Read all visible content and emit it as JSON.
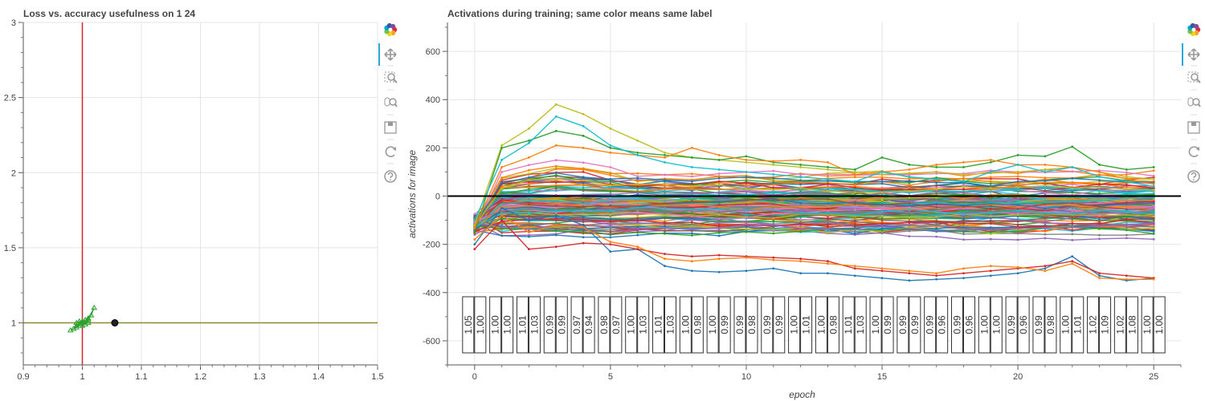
{
  "left_plot": {
    "title": "Loss vs. accuracy usefulness on 1 24",
    "toolbar_icons": [
      "bokeh-logo-icon",
      "pan-icon",
      "box-zoom-icon",
      "wheel-zoom-icon",
      "save-icon",
      "reset-icon",
      "help-icon"
    ]
  },
  "right_plot": {
    "title": "Activations during training; same color means same label",
    "toolbar_icons": [
      "bokeh-logo-icon",
      "pan-icon",
      "box-zoom-icon",
      "wheel-zoom-icon",
      "save-icon",
      "reset-icon",
      "help-icon"
    ]
  },
  "chart_data": [
    {
      "type": "scatter",
      "title": "Loss vs. accuracy usefulness on 1 24",
      "xlabel": "",
      "ylabel": "",
      "xlim": [
        0.9,
        1.5
      ],
      "ylim": [
        0.72,
        3.0
      ],
      "x_ticks": [
        0.9,
        1.0,
        1.1,
        1.2,
        1.3,
        1.4,
        1.5
      ],
      "y_ticks": [
        1.0,
        1.5,
        2.0,
        2.5,
        3.0
      ],
      "grid": true,
      "reference_lines": {
        "vertical_x": 1.0,
        "vertical_color": "#d62728",
        "horizontal_y": 1.0,
        "horizontal_color": "#8c8c2a"
      },
      "current_point": {
        "x": 1.055,
        "y": 1.0
      },
      "trajectory_color": "#2ca02c",
      "trajectory": [
        [
          0.98,
          0.95
        ],
        [
          0.99,
          0.97
        ],
        [
          1.0,
          1.0
        ],
        [
          1.01,
          1.02
        ],
        [
          1.005,
          0.99
        ],
        [
          0.995,
          1.01
        ],
        [
          1.0,
          0.98
        ],
        [
          1.015,
          1.05
        ],
        [
          1.02,
          1.1
        ],
        [
          1.01,
          1.03
        ],
        [
          0.99,
          0.98
        ],
        [
          0.985,
          0.96
        ],
        [
          1.0,
          1.0
        ],
        [
          1.005,
          1.02
        ],
        [
          0.995,
          0.99
        ],
        [
          1.01,
          1.0
        ],
        [
          1.0,
          1.01
        ],
        [
          0.99,
          1.0
        ]
      ]
    },
    {
      "type": "line",
      "title": "Activations during training; same color means same label",
      "xlabel": "epoch",
      "ylabel": "activations for image",
      "xlim": [
        -1,
        26
      ],
      "ylim": [
        -700,
        720
      ],
      "x_ticks": [
        0,
        5,
        10,
        15,
        20,
        25
      ],
      "y_ticks": [
        -600,
        -400,
        -200,
        0,
        200,
        400,
        600
      ],
      "grid": true,
      "zero_line": true,
      "x": [
        0,
        1,
        2,
        3,
        4,
        5,
        6,
        7,
        8,
        9,
        10,
        11,
        12,
        13,
        14,
        15,
        16,
        17,
        18,
        19,
        20,
        21,
        22,
        23,
        24,
        25
      ],
      "n_series_approx": 130,
      "series_colors": [
        "#1f77b4",
        "#ff7f0e",
        "#2ca02c",
        "#d62728",
        "#9467bd",
        "#8c564b",
        "#e377c2",
        "#7f7f7f",
        "#bcbd22",
        "#17becf"
      ],
      "highlighted_series": [
        {
          "color": "#bcbd22",
          "values": [
            -120,
            210,
            280,
            380,
            340,
            280,
            230,
            180,
            160,
            150,
            140,
            130,
            120,
            110,
            100,
            90,
            95,
            100,
            90,
            95,
            100,
            110,
            120,
            100,
            80,
            70
          ]
        },
        {
          "color": "#2ca02c",
          "values": [
            -150,
            200,
            230,
            270,
            250,
            200,
            180,
            170,
            160,
            150,
            165,
            140,
            130,
            120,
            110,
            160,
            130,
            120,
            120,
            140,
            170,
            165,
            205,
            130,
            110,
            120
          ]
        },
        {
          "color": "#ff7f0e",
          "values": [
            -130,
            120,
            160,
            210,
            200,
            180,
            170,
            160,
            200,
            170,
            150,
            145,
            150,
            140,
            90,
            100,
            110,
            130,
            140,
            150,
            130,
            130,
            120,
            100,
            70,
            50
          ]
        },
        {
          "color": "#17becf",
          "values": [
            -100,
            150,
            220,
            330,
            290,
            210,
            170,
            140,
            120,
            110,
            100,
            90,
            80,
            70,
            60,
            100,
            80,
            70,
            60,
            100,
            130,
            100,
            120,
            80,
            60,
            40
          ]
        },
        {
          "color": "#1f77b4",
          "values": [
            -200,
            -50,
            -100,
            -80,
            -120,
            -230,
            -220,
            -290,
            -310,
            -315,
            -310,
            -300,
            -320,
            -320,
            -330,
            -340,
            -350,
            -345,
            -340,
            -330,
            -320,
            -300,
            -250,
            -330,
            -350,
            -340
          ]
        },
        {
          "color": "#d62728",
          "values": [
            -220,
            -100,
            -220,
            -210,
            -195,
            -200,
            -220,
            -240,
            -250,
            -245,
            -250,
            -255,
            -260,
            -270,
            -300,
            -310,
            -320,
            -330,
            -320,
            -310,
            -300,
            -290,
            -270,
            -320,
            -330,
            -340
          ]
        },
        {
          "color": "#ff7f0e",
          "values": [
            -180,
            -80,
            -150,
            -120,
            -130,
            -190,
            -210,
            -260,
            -270,
            -260,
            -255,
            -265,
            -270,
            -280,
            -290,
            -300,
            -310,
            -320,
            -300,
            -290,
            -295,
            -310,
            -280,
            -340,
            -345,
            -345
          ]
        }
      ],
      "annotations": [
        {
          "x": 0,
          "a": "1.05",
          "b": "1.00"
        },
        {
          "x": 1,
          "a": "1.00",
          "b": "1.00"
        },
        {
          "x": 2,
          "a": "1.01",
          "b": "1.03"
        },
        {
          "x": 3,
          "a": "0.99",
          "b": "0.99"
        },
        {
          "x": 4,
          "a": "0.97",
          "b": "0.94"
        },
        {
          "x": 5,
          "a": "0.98",
          "b": "0.97"
        },
        {
          "x": 6,
          "a": "1.00",
          "b": "1.03"
        },
        {
          "x": 7,
          "a": "1.01",
          "b": "1.03"
        },
        {
          "x": 8,
          "a": "1.00",
          "b": "0.98"
        },
        {
          "x": 9,
          "a": "1.00",
          "b": "0.99"
        },
        {
          "x": 10,
          "a": "0.99",
          "b": "0.98"
        },
        {
          "x": 11,
          "a": "0.99",
          "b": "0.99"
        },
        {
          "x": 12,
          "a": "1.00",
          "b": "1.01"
        },
        {
          "x": 13,
          "a": "1.00",
          "b": "0.98"
        },
        {
          "x": 14,
          "a": "1.01",
          "b": "1.03"
        },
        {
          "x": 15,
          "a": "1.00",
          "b": "0.99"
        },
        {
          "x": 16,
          "a": "0.99",
          "b": "0.99"
        },
        {
          "x": 17,
          "a": "0.99",
          "b": "0.96"
        },
        {
          "x": 18,
          "a": "0.99",
          "b": "0.96"
        },
        {
          "x": 19,
          "a": "1.00",
          "b": "1.00"
        },
        {
          "x": 20,
          "a": "0.99",
          "b": "0.96"
        },
        {
          "x": 21,
          "a": "0.99",
          "b": "0.98"
        },
        {
          "x": 22,
          "a": "1.00",
          "b": "1.01"
        },
        {
          "x": 23,
          "a": "1.02",
          "b": "1.09"
        },
        {
          "x": 24,
          "a": "1.02",
          "b": "1.08"
        },
        {
          "x": 25,
          "a": "1.00",
          "b": "1.00"
        }
      ]
    }
  ]
}
